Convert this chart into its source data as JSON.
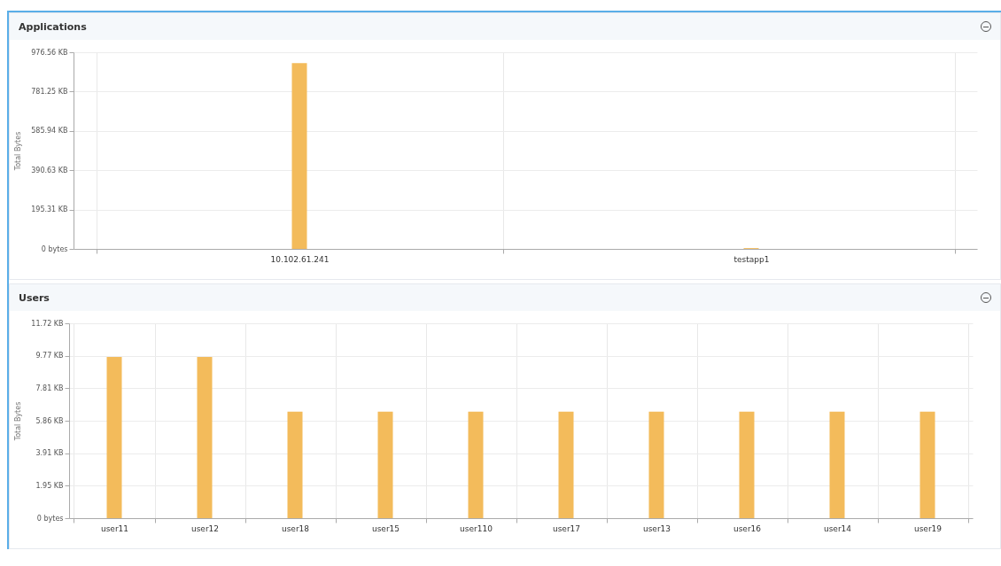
{
  "chart_data": [
    {
      "type": "bar",
      "title": "Applications",
      "ylabel": "Total Bytes",
      "categories": [
        "10.102.61.241",
        "testapp1"
      ],
      "values": [
        923,
        4
      ],
      "color": "#f3bb5b",
      "ylim": [
        0,
        976.56
      ],
      "yticks": [
        {
          "value": 0,
          "label": "0 bytes"
        },
        {
          "value": 195.31,
          "label": "195.31 KB"
        },
        {
          "value": 390.63,
          "label": "390.63 KB"
        },
        {
          "value": 585.94,
          "label": "585.94 KB"
        },
        {
          "value": 781.25,
          "label": "781.25 KB"
        },
        {
          "value": 976.56,
          "label": "976.56 KB"
        }
      ],
      "grid": true
    },
    {
      "type": "bar",
      "title": "Users",
      "ylabel": "Total Bytes",
      "categories": [
        "user11",
        "user12",
        "user18",
        "user15",
        "user110",
        "user17",
        "user13",
        "user16",
        "user14",
        "user19"
      ],
      "values": [
        9.7,
        9.7,
        6.4,
        6.4,
        6.4,
        6.4,
        6.4,
        6.4,
        6.4,
        6.4
      ],
      "color": "#f3bb5b",
      "ylim": [
        0,
        11.72
      ],
      "yticks": [
        {
          "value": 0,
          "label": "0 bytes"
        },
        {
          "value": 1.95,
          "label": "1.95 KB"
        },
        {
          "value": 3.91,
          "label": "3.91 KB"
        },
        {
          "value": 5.86,
          "label": "5.86 KB"
        },
        {
          "value": 7.81,
          "label": "7.81 KB"
        },
        {
          "value": 9.77,
          "label": "9.77 KB"
        },
        {
          "value": 11.72,
          "label": "11.72 KB"
        }
      ],
      "grid": true
    }
  ]
}
